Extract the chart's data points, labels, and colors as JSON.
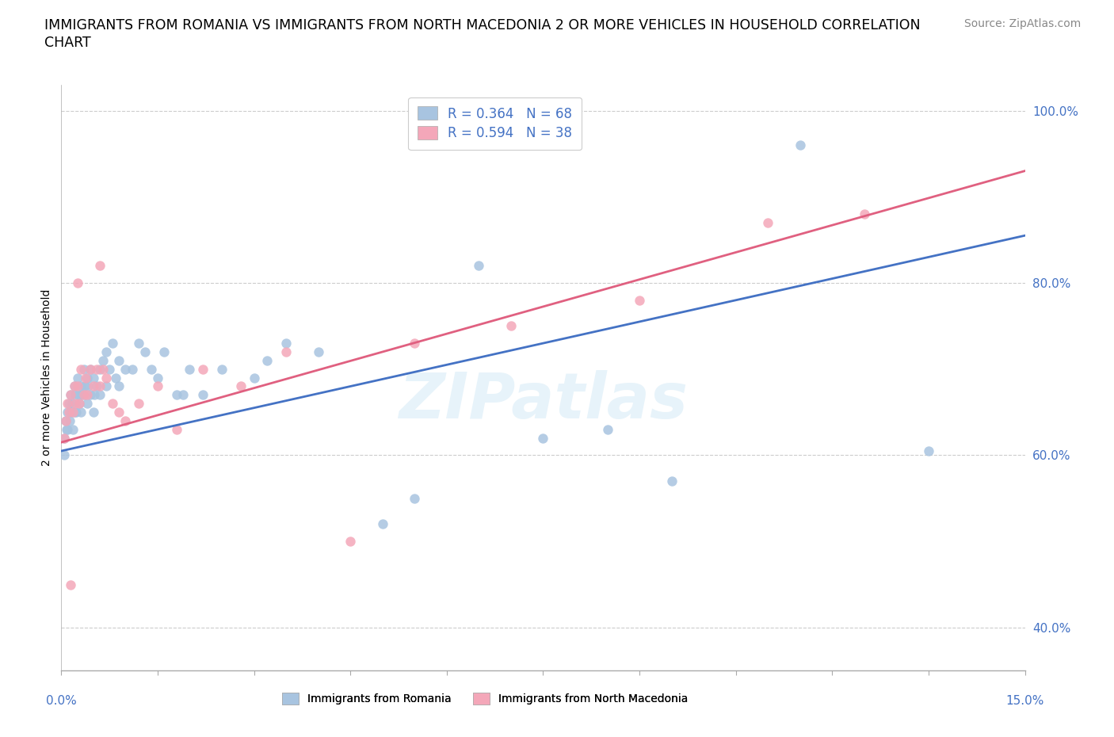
{
  "title_line1": "IMMIGRANTS FROM ROMANIA VS IMMIGRANTS FROM NORTH MACEDONIA 2 OR MORE VEHICLES IN HOUSEHOLD CORRELATION",
  "title_line2": "CHART",
  "source": "Source: ZipAtlas.com",
  "ylabel": "2 or more Vehicles in Household",
  "xlim": [
    0.0,
    15.0
  ],
  "ylim": [
    35.0,
    103.0
  ],
  "yticks": [
    40.0,
    60.0,
    80.0,
    100.0
  ],
  "ytick_labels": [
    "40.0%",
    "60.0%",
    "80.0%",
    "100.0%"
  ],
  "romania_color": "#a8c4e0",
  "macedonia_color": "#f4a7b9",
  "romania_line_color": "#4472c4",
  "macedonia_line_color": "#e06080",
  "romania_R": 0.364,
  "romania_N": 68,
  "macedonia_R": 0.594,
  "macedonia_N": 38,
  "watermark": "ZIPatlas",
  "romania_line_x0": 0.0,
  "romania_line_y0": 60.5,
  "romania_line_x1": 15.0,
  "romania_line_y1": 85.5,
  "macedonia_line_x0": 0.0,
  "macedonia_line_y0": 61.5,
  "macedonia_line_x1": 15.0,
  "macedonia_line_y1": 93.0,
  "romania_x": [
    0.05,
    0.05,
    0.07,
    0.08,
    0.1,
    0.1,
    0.12,
    0.13,
    0.15,
    0.15,
    0.17,
    0.18,
    0.2,
    0.2,
    0.22,
    0.23,
    0.25,
    0.27,
    0.28,
    0.3,
    0.3,
    0.32,
    0.35,
    0.35,
    0.37,
    0.4,
    0.4,
    0.42,
    0.45,
    0.45,
    0.5,
    0.5,
    0.52,
    0.55,
    0.6,
    0.6,
    0.65,
    0.7,
    0.7,
    0.75,
    0.8,
    0.85,
    0.9,
    0.9,
    1.0,
    1.1,
    1.2,
    1.3,
    1.4,
    1.5,
    1.6,
    1.8,
    2.0,
    2.2,
    2.5,
    3.0,
    3.2,
    4.0,
    5.5,
    6.5,
    8.5,
    9.5,
    11.5,
    13.5,
    3.5,
    5.0,
    7.5,
    1.9
  ],
  "romania_y": [
    62,
    60,
    64,
    63,
    65,
    63,
    66,
    64,
    67,
    65,
    66,
    63,
    68,
    65,
    67,
    65,
    69,
    67,
    66,
    68,
    65,
    67,
    70,
    67,
    68,
    69,
    66,
    68,
    70,
    67,
    69,
    65,
    67,
    68,
    70,
    67,
    71,
    72,
    68,
    70,
    73,
    69,
    71,
    68,
    70,
    70,
    73,
    72,
    70,
    69,
    72,
    67,
    70,
    67,
    70,
    69,
    71,
    72,
    55,
    82,
    63,
    57,
    96,
    60.5,
    73,
    52,
    62,
    67
  ],
  "macedonia_x": [
    0.05,
    0.07,
    0.1,
    0.12,
    0.15,
    0.18,
    0.2,
    0.22,
    0.25,
    0.28,
    0.3,
    0.35,
    0.38,
    0.4,
    0.45,
    0.5,
    0.55,
    0.6,
    0.65,
    0.7,
    0.8,
    0.9,
    1.0,
    1.2,
    1.5,
    1.8,
    2.2,
    2.8,
    3.5,
    4.5,
    5.5,
    7.0,
    9.0,
    11.0,
    12.5,
    0.25,
    0.15,
    0.6
  ],
  "macedonia_y": [
    62,
    64,
    66,
    65,
    67,
    65,
    68,
    66,
    68,
    66,
    70,
    67,
    69,
    67,
    70,
    68,
    70,
    68,
    70,
    69,
    66,
    65,
    64,
    66,
    68,
    63,
    70,
    68,
    72,
    50,
    73,
    75,
    78,
    87,
    88,
    80,
    45,
    82
  ],
  "grid_color": "#cccccc",
  "background_color": "#ffffff",
  "title_fontsize": 12.5,
  "axis_label_fontsize": 10,
  "tick_fontsize": 11,
  "legend_fontsize": 12,
  "source_fontsize": 10
}
